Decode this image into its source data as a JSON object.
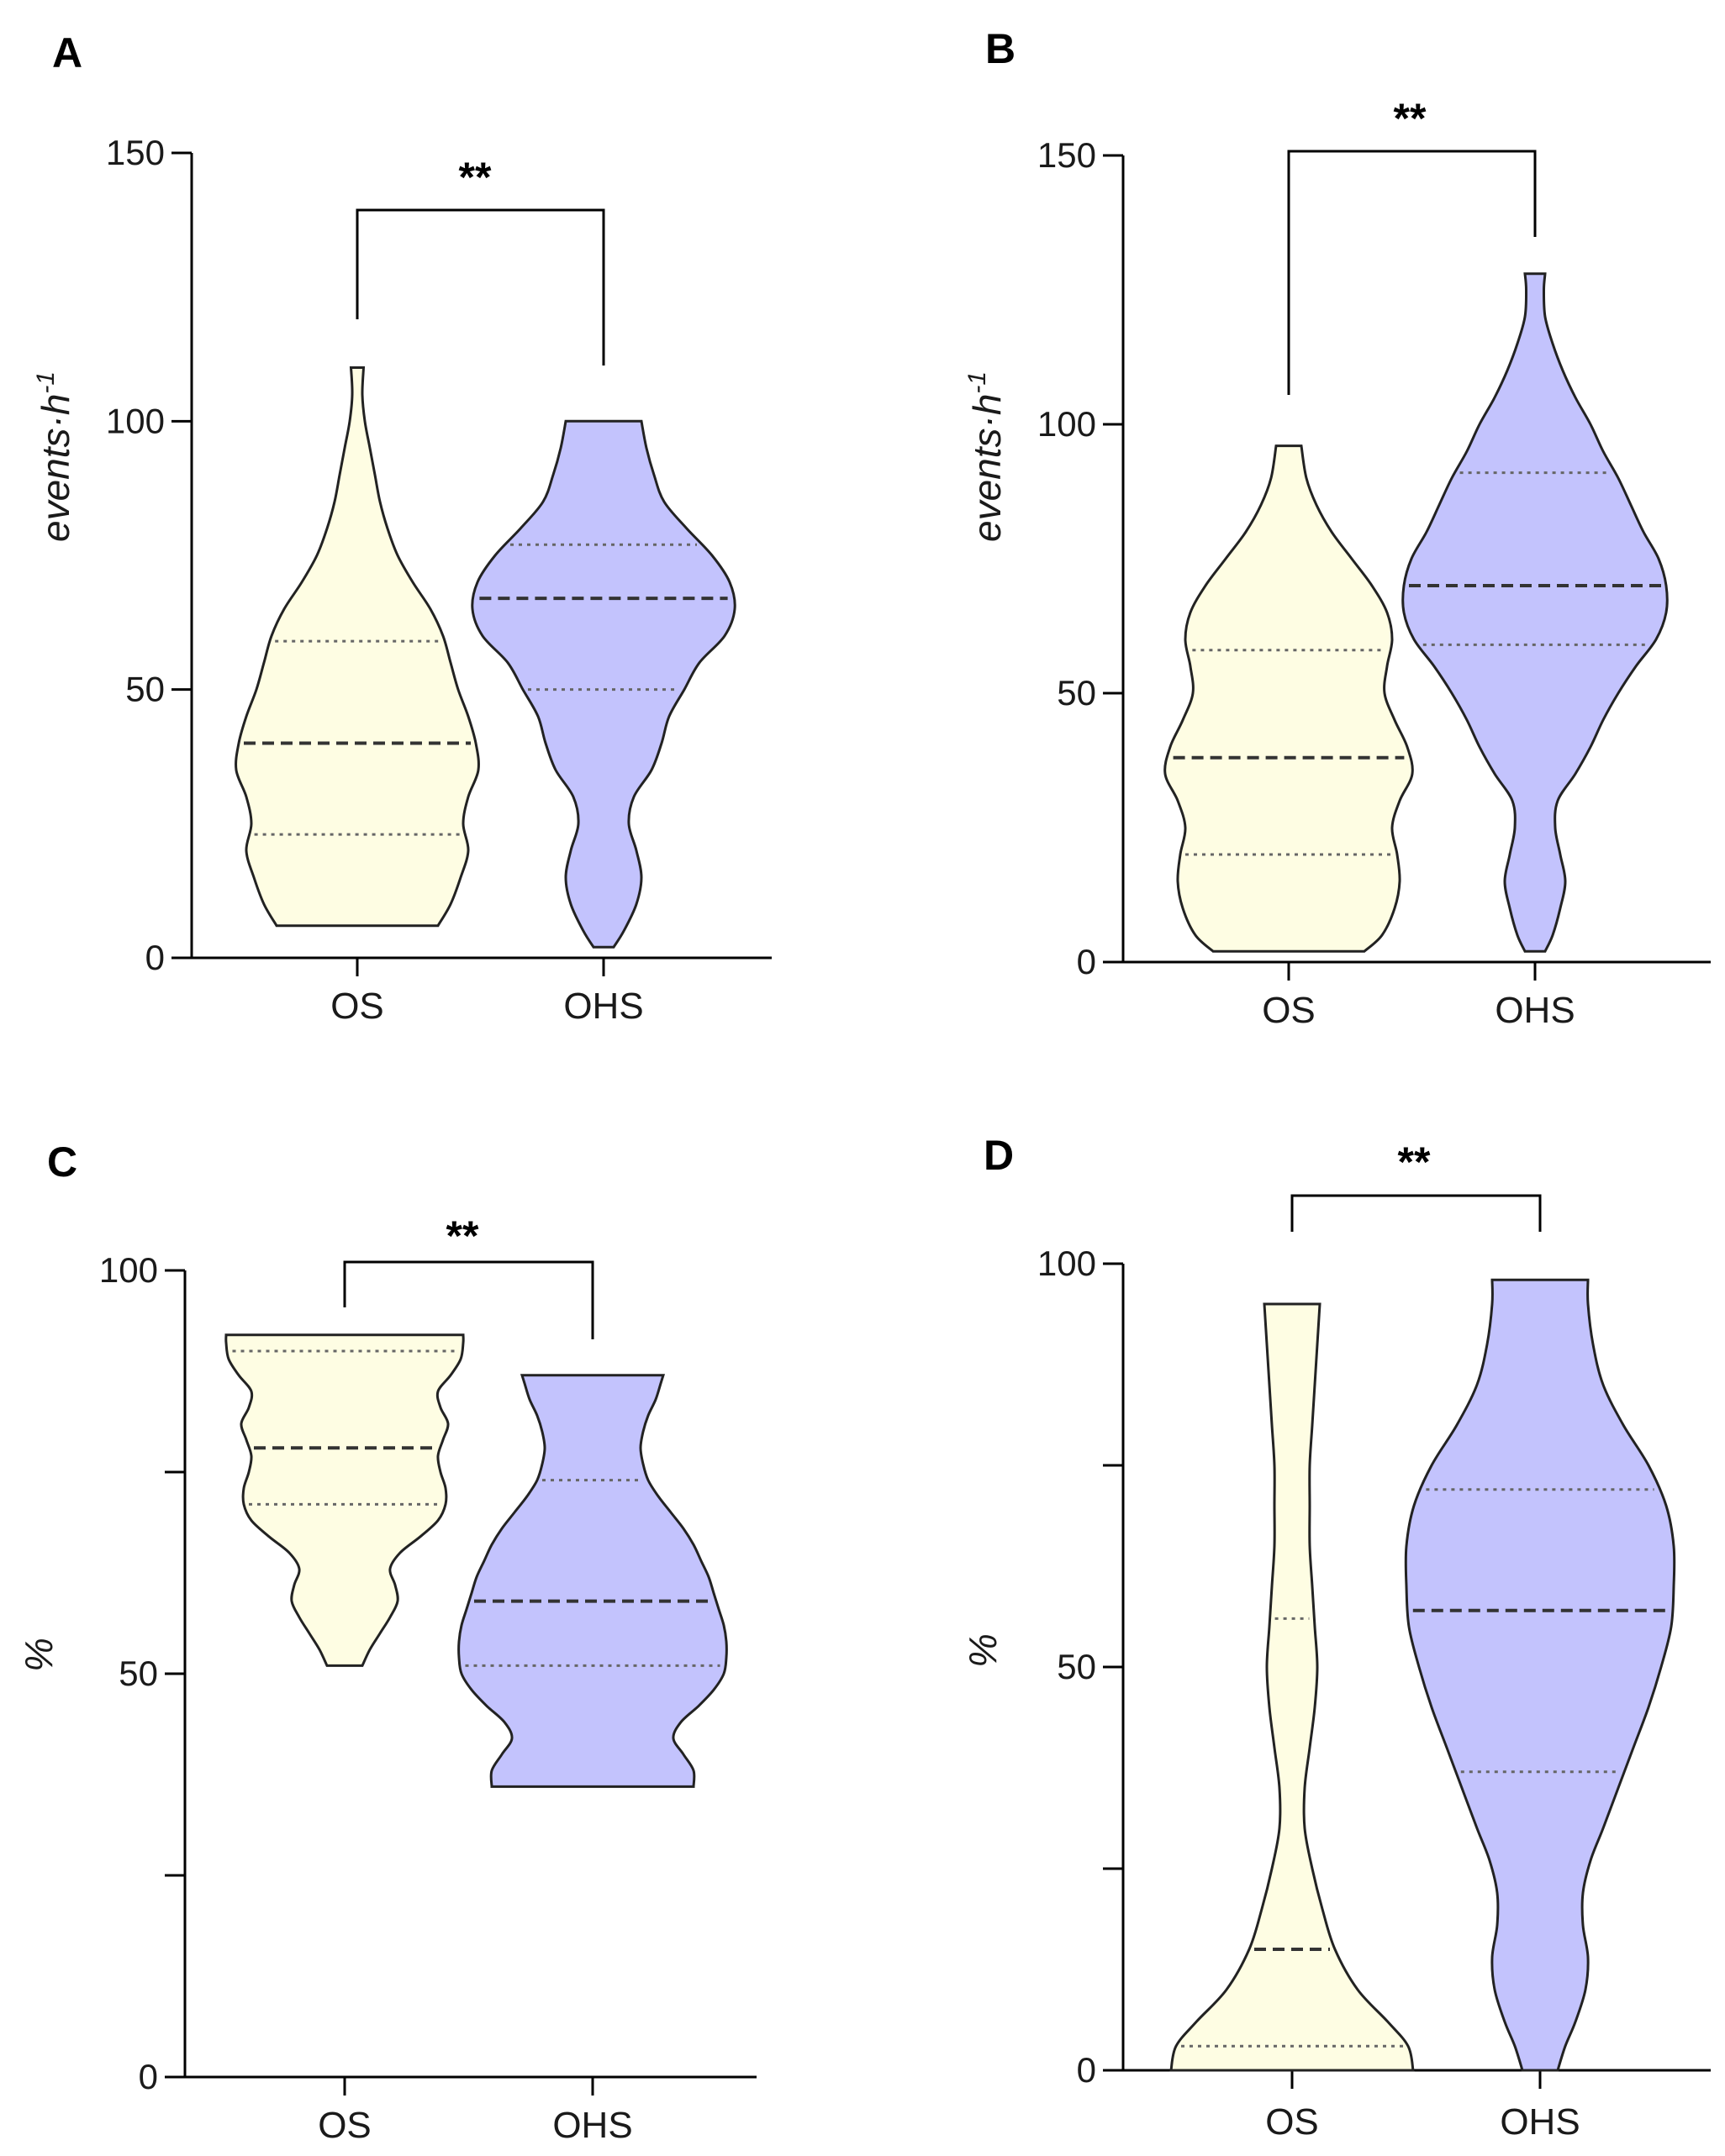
{
  "colors": {
    "os_fill": "#fefde3",
    "ohs_fill": "#c3c3fd",
    "outline": "#222222"
  },
  "chart_data": [
    {
      "panel": "A",
      "type": "violin",
      "ylabel": "events·h",
      "ylabel_sup": "-1",
      "ylim": [
        0,
        150
      ],
      "yticks": [
        0,
        50,
        100,
        150
      ],
      "categories": [
        "OS",
        "OHS"
      ],
      "significance": "**",
      "series": [
        {
          "name": "OS",
          "min": 6,
          "max": 110,
          "q1": 23,
          "median": 40,
          "q3": 59,
          "profile": [
            [
              6,
              0.32
            ],
            [
              10,
              0.37
            ],
            [
              15,
              0.41
            ],
            [
              20,
              0.44
            ],
            [
              25,
              0.42
            ],
            [
              30,
              0.44
            ],
            [
              35,
              0.48
            ],
            [
              40,
              0.47
            ],
            [
              45,
              0.44
            ],
            [
              50,
              0.4
            ],
            [
              55,
              0.37
            ],
            [
              60,
              0.34
            ],
            [
              65,
              0.29
            ],
            [
              70,
              0.22
            ],
            [
              75,
              0.16
            ],
            [
              80,
              0.12
            ],
            [
              85,
              0.09
            ],
            [
              90,
              0.07
            ],
            [
              95,
              0.05
            ],
            [
              100,
              0.03
            ],
            [
              105,
              0.02
            ],
            [
              110,
              0.025
            ]
          ]
        },
        {
          "name": "OHS",
          "min": 2,
          "max": 100,
          "q1": 50,
          "median": 67,
          "q3": 77,
          "profile": [
            [
              2,
              0.04
            ],
            [
              5,
              0.08
            ],
            [
              10,
              0.13
            ],
            [
              15,
              0.15
            ],
            [
              20,
              0.13
            ],
            [
              25,
              0.1
            ],
            [
              30,
              0.12
            ],
            [
              35,
              0.19
            ],
            [
              40,
              0.23
            ],
            [
              45,
              0.26
            ],
            [
              50,
              0.32
            ],
            [
              55,
              0.38
            ],
            [
              60,
              0.48
            ],
            [
              65,
              0.52
            ],
            [
              70,
              0.5
            ],
            [
              75,
              0.43
            ],
            [
              80,
              0.33
            ],
            [
              85,
              0.24
            ],
            [
              90,
              0.2
            ],
            [
              95,
              0.17
            ],
            [
              100,
              0.15
            ]
          ]
        }
      ]
    },
    {
      "panel": "B",
      "type": "violin",
      "ylabel": "events·h",
      "ylabel_sup": "-1",
      "ylim": [
        0,
        150
      ],
      "yticks": [
        0,
        50,
        100,
        150
      ],
      "categories": [
        "OS",
        "OHS"
      ],
      "significance": "**",
      "series": [
        {
          "name": "OS",
          "min": 2,
          "max": 96,
          "q1": 20,
          "median": 38,
          "q3": 58,
          "profile": [
            [
              2,
              0.3
            ],
            [
              5,
              0.37
            ],
            [
              10,
              0.42
            ],
            [
              15,
              0.44
            ],
            [
              20,
              0.43
            ],
            [
              25,
              0.41
            ],
            [
              30,
              0.44
            ],
            [
              35,
              0.49
            ],
            [
              40,
              0.47
            ],
            [
              45,
              0.42
            ],
            [
              50,
              0.38
            ],
            [
              55,
              0.39
            ],
            [
              60,
              0.41
            ],
            [
              65,
              0.39
            ],
            [
              70,
              0.33
            ],
            [
              75,
              0.25
            ],
            [
              80,
              0.17
            ],
            [
              85,
              0.11
            ],
            [
              90,
              0.07
            ],
            [
              96,
              0.05
            ]
          ]
        },
        {
          "name": "OHS",
          "min": 2,
          "max": 128,
          "q1": 59,
          "median": 70,
          "q3": 91,
          "profile": [
            [
              2,
              0.04
            ],
            [
              5,
              0.07
            ],
            [
              10,
              0.1
            ],
            [
              15,
              0.12
            ],
            [
              20,
              0.1
            ],
            [
              25,
              0.08
            ],
            [
              30,
              0.09
            ],
            [
              35,
              0.16
            ],
            [
              40,
              0.22
            ],
            [
              45,
              0.27
            ],
            [
              50,
              0.33
            ],
            [
              55,
              0.4
            ],
            [
              60,
              0.48
            ],
            [
              65,
              0.52
            ],
            [
              70,
              0.52
            ],
            [
              75,
              0.49
            ],
            [
              80,
              0.43
            ],
            [
              85,
              0.38
            ],
            [
              90,
              0.33
            ],
            [
              95,
              0.27
            ],
            [
              100,
              0.22
            ],
            [
              105,
              0.16
            ],
            [
              110,
              0.11
            ],
            [
              115,
              0.07
            ],
            [
              120,
              0.04
            ],
            [
              125,
              0.035
            ],
            [
              128,
              0.04
            ]
          ]
        }
      ]
    },
    {
      "panel": "C",
      "type": "violin",
      "ylabel": "%",
      "ylim": [
        0,
        100
      ],
      "yticks": [
        0,
        25,
        50,
        75,
        100
      ],
      "yticklabels": [
        "0",
        "",
        "50",
        "",
        "100"
      ],
      "categories": [
        "OS",
        "OHS"
      ],
      "significance": "**",
      "series": [
        {
          "name": "OS",
          "min": 51,
          "max": 92,
          "q1": 71,
          "median": 78,
          "q3": 90,
          "profile": [
            [
              51,
              0.07
            ],
            [
              53,
              0.1
            ],
            [
              55,
              0.14
            ],
            [
              57,
              0.18
            ],
            [
              59,
              0.21
            ],
            [
              61,
              0.2
            ],
            [
              63,
              0.18
            ],
            [
              65,
              0.22
            ],
            [
              67,
              0.3
            ],
            [
              69,
              0.37
            ],
            [
              71,
              0.4
            ],
            [
              73,
              0.4
            ],
            [
              75,
              0.38
            ],
            [
              77,
              0.37
            ],
            [
              79,
              0.39
            ],
            [
              81,
              0.41
            ],
            [
              83,
              0.38
            ],
            [
              85,
              0.37
            ],
            [
              87,
              0.42
            ],
            [
              89,
              0.46
            ],
            [
              91,
              0.47
            ],
            [
              92,
              0.47
            ]
          ]
        },
        {
          "name": "OHS",
          "min": 36,
          "max": 87,
          "q1": 51,
          "median": 59,
          "q3": 74,
          "profile": [
            [
              36,
              0.4
            ],
            [
              38,
              0.4
            ],
            [
              40,
              0.36
            ],
            [
              42,
              0.32
            ],
            [
              44,
              0.35
            ],
            [
              46,
              0.42
            ],
            [
              48,
              0.48
            ],
            [
              50,
              0.52
            ],
            [
              52,
              0.53
            ],
            [
              54,
              0.53
            ],
            [
              56,
              0.52
            ],
            [
              58,
              0.5
            ],
            [
              60,
              0.48
            ],
            [
              62,
              0.46
            ],
            [
              64,
              0.43
            ],
            [
              66,
              0.4
            ],
            [
              68,
              0.36
            ],
            [
              70,
              0.31
            ],
            [
              72,
              0.26
            ],
            [
              74,
              0.22
            ],
            [
              76,
              0.2
            ],
            [
              78,
              0.19
            ],
            [
              80,
              0.2
            ],
            [
              82,
              0.22
            ],
            [
              84,
              0.25
            ],
            [
              86,
              0.27
            ],
            [
              87,
              0.28
            ]
          ]
        }
      ]
    },
    {
      "panel": "D",
      "type": "violin",
      "ylabel": "%",
      "ylim": [
        0,
        100
      ],
      "yticks": [
        0,
        25,
        50,
        75,
        100
      ],
      "yticklabels": [
        "0",
        "",
        "50",
        "",
        "100"
      ],
      "categories": [
        "OS",
        "OHS"
      ],
      "significance": "**",
      "series": [
        {
          "name": "OS",
          "min": 0,
          "max": 95,
          "q1": 3,
          "median": 15,
          "q3": 56,
          "profile": [
            [
              0,
              0.48
            ],
            [
              3,
              0.46
            ],
            [
              6,
              0.38
            ],
            [
              10,
              0.26
            ],
            [
              15,
              0.17
            ],
            [
              20,
              0.12
            ],
            [
              25,
              0.08
            ],
            [
              30,
              0.05
            ],
            [
              35,
              0.05
            ],
            [
              40,
              0.07
            ],
            [
              45,
              0.09
            ],
            [
              50,
              0.1
            ],
            [
              55,
              0.09
            ],
            [
              60,
              0.08
            ],
            [
              65,
              0.07
            ],
            [
              70,
              0.07
            ],
            [
              75,
              0.07
            ],
            [
              80,
              0.08
            ],
            [
              85,
              0.09
            ],
            [
              90,
              0.1
            ],
            [
              95,
              0.11
            ]
          ]
        },
        {
          "name": "OHS",
          "min": 0,
          "max": 98,
          "q1": 37,
          "median": 57,
          "q3": 72,
          "profile": [
            [
              0,
              0.07
            ],
            [
              3,
              0.1
            ],
            [
              6,
              0.14
            ],
            [
              10,
              0.18
            ],
            [
              14,
              0.19
            ],
            [
              18,
              0.17
            ],
            [
              22,
              0.17
            ],
            [
              26,
              0.2
            ],
            [
              30,
              0.25
            ],
            [
              35,
              0.31
            ],
            [
              40,
              0.37
            ],
            [
              45,
              0.43
            ],
            [
              50,
              0.48
            ],
            [
              55,
              0.52
            ],
            [
              60,
              0.53
            ],
            [
              65,
              0.53
            ],
            [
              70,
              0.5
            ],
            [
              75,
              0.43
            ],
            [
              80,
              0.33
            ],
            [
              85,
              0.25
            ],
            [
              90,
              0.21
            ],
            [
              95,
              0.19
            ],
            [
              98,
              0.19
            ]
          ]
        }
      ]
    }
  ]
}
